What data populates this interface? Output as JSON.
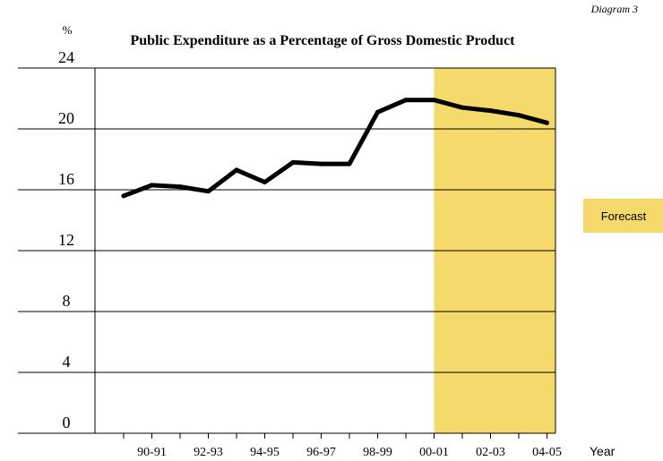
{
  "diagram_label": "Diagram 3",
  "chart_data": {
    "type": "line",
    "title": "Public Expenditure as a Percentage of Gross Domestic Product",
    "ylabel": "%",
    "xlabel": "Year",
    "ylim": [
      0,
      24
    ],
    "y_ticks": [
      0,
      4,
      8,
      12,
      16,
      20,
      24
    ],
    "grid": true,
    "x_tick_labels": [
      "90-91",
      "92-93",
      "94-95",
      "96-97",
      "98-99",
      "00-01",
      "02-03",
      "04-05"
    ],
    "x": [
      "89-90",
      "90-91",
      "91-92",
      "92-93",
      "93-94",
      "94-95",
      "95-96",
      "96-97",
      "97-98",
      "98-99",
      "99-00",
      "00-01",
      "01-02",
      "02-03",
      "03-04",
      "04-05"
    ],
    "values": [
      15.6,
      16.3,
      16.2,
      15.9,
      17.3,
      16.5,
      17.8,
      17.7,
      17.7,
      21.1,
      21.9,
      21.9,
      21.4,
      21.2,
      20.9,
      20.4
    ],
    "forecast": {
      "label": "Forecast",
      "start": "00-01",
      "end": "04-05",
      "color": "#f5d96a"
    },
    "line_color": "#000000"
  }
}
